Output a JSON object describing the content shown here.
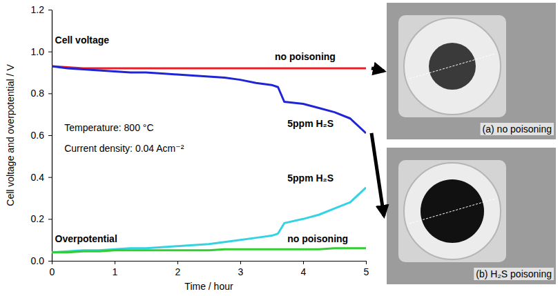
{
  "chart_data": {
    "type": "line",
    "xlabel": "Time / hour",
    "ylabel": "Cell voltage and overpotential / V",
    "x": [
      0,
      0.25,
      0.5,
      0.75,
      1,
      1.25,
      1.5,
      1.75,
      2,
      2.25,
      2.5,
      2.75,
      3,
      3.25,
      3.5,
      3.6,
      3.7,
      4,
      4.25,
      4.5,
      4.75,
      5
    ],
    "series": [
      {
        "name": "no poisoning",
        "color": "#ee1c24",
        "line_style": "solid",
        "values": [
          0.93,
          0.925,
          0.92,
          0.92,
          0.92,
          0.92,
          0.92,
          0.92,
          0.92,
          0.92,
          0.92,
          0.92,
          0.92,
          0.92,
          0.92,
          0.92,
          0.92,
          0.92,
          0.92,
          0.92,
          0.92,
          0.92
        ]
      },
      {
        "name": "5ppm H₂S",
        "color": "#1f24d6",
        "line_style": "solid",
        "values": [
          0.93,
          0.92,
          0.915,
          0.91,
          0.905,
          0.9,
          0.9,
          0.895,
          0.89,
          0.885,
          0.88,
          0.875,
          0.865,
          0.85,
          0.84,
          0.83,
          0.76,
          0.75,
          0.73,
          0.71,
          0.68,
          0.61
        ]
      },
      {
        "name": "5ppm H₂S",
        "color": "#33d3e3",
        "line_style": "solid",
        "values": [
          0.04,
          0.045,
          0.05,
          0.05,
          0.055,
          0.06,
          0.06,
          0.065,
          0.07,
          0.075,
          0.08,
          0.09,
          0.1,
          0.11,
          0.12,
          0.13,
          0.18,
          0.2,
          0.22,
          0.25,
          0.28,
          0.35
        ]
      },
      {
        "name": "no poisoning",
        "color": "#33cc33",
        "line_style": "solid",
        "values": [
          0.04,
          0.04,
          0.045,
          0.045,
          0.05,
          0.05,
          0.05,
          0.05,
          0.05,
          0.05,
          0.05,
          0.055,
          0.055,
          0.055,
          0.055,
          0.055,
          0.055,
          0.055,
          0.055,
          0.06,
          0.06,
          0.06
        ]
      }
    ],
    "xlim": [
      0,
      5
    ],
    "xticks": [
      0,
      1,
      2,
      3,
      4,
      5
    ],
    "ylim": [
      0,
      1.2
    ],
    "yticks": [
      {
        "value": 0,
        "label": "0.0"
      },
      0.2,
      0.4,
      0.6,
      0.8,
      {
        "value": 1,
        "label": "1.0"
      },
      0.2,
      1.2
    ],
    "grid": false,
    "annotations": [
      "Cell voltage",
      "Temperature: 800 °C",
      "Current density: 0.04 Acm⁻²",
      "Overpotential",
      "(a) no poisoning",
      "(b) H₂S poisoning"
    ]
  }
}
